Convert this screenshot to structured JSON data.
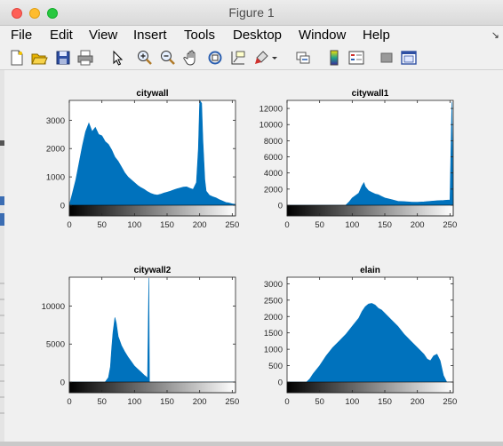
{
  "window": {
    "title": "Figure 1"
  },
  "menu": [
    "File",
    "Edit",
    "View",
    "Insert",
    "Tools",
    "Desktop",
    "Window",
    "Help"
  ],
  "toolbar_icons": [
    "new-figure-icon",
    "open-file-icon",
    "save-icon",
    "print-icon",
    "pointer-icon",
    "zoom-in-icon",
    "zoom-out-icon",
    "pan-hand-icon",
    "rotate-3d-icon",
    "data-cursor-icon",
    "brush-icon",
    "brush-dropdown-icon",
    "link-plot-icon",
    "colorbar-icon",
    "legend-icon",
    "hide-plot-tools-icon",
    "show-plot-tools-icon"
  ],
  "colors": {
    "bar": "#0072bd",
    "figure_bg": "#f0f0f0",
    "axes_bg": "#ffffff"
  },
  "chart_data": [
    {
      "type": "bar",
      "title": "citywall",
      "xlabel": "",
      "ylabel": "",
      "xlim": [
        0,
        255
      ],
      "ylim": [
        0,
        3700
      ],
      "xticks": [
        0,
        50,
        100,
        150,
        200,
        250
      ],
      "yticks": [
        0,
        1000,
        2000,
        3000
      ],
      "x": [
        0,
        5,
        10,
        15,
        20,
        25,
        30,
        35,
        40,
        45,
        50,
        55,
        60,
        65,
        70,
        75,
        80,
        85,
        90,
        95,
        100,
        105,
        110,
        115,
        120,
        125,
        130,
        135,
        140,
        145,
        150,
        155,
        160,
        165,
        170,
        175,
        180,
        185,
        190,
        195,
        198,
        200,
        203,
        205,
        208,
        210,
        215,
        220,
        225,
        230,
        235,
        240,
        245,
        250,
        255
      ],
      "y": [
        0,
        450,
        900,
        1500,
        2100,
        2600,
        2900,
        2600,
        2750,
        2500,
        2450,
        2250,
        2150,
        1950,
        1700,
        1550,
        1350,
        1150,
        1000,
        900,
        800,
        700,
        620,
        560,
        480,
        420,
        380,
        360,
        390,
        430,
        460,
        500,
        540,
        580,
        610,
        640,
        650,
        600,
        560,
        800,
        2000,
        3700,
        3600,
        2300,
        900,
        500,
        350,
        300,
        260,
        200,
        150,
        100,
        80,
        50,
        30
      ]
    },
    {
      "type": "bar",
      "title": "citywall1",
      "xlabel": "",
      "ylabel": "",
      "xlim": [
        0,
        255
      ],
      "ylim": [
        0,
        13000
      ],
      "xticks": [
        0,
        50,
        100,
        150,
        200,
        250
      ],
      "yticks": [
        0,
        2000,
        4000,
        6000,
        8000,
        10000,
        12000
      ],
      "x": [
        0,
        80,
        90,
        95,
        100,
        105,
        110,
        115,
        118,
        120,
        125,
        130,
        135,
        140,
        145,
        150,
        160,
        170,
        180,
        190,
        200,
        210,
        220,
        230,
        240,
        250,
        253,
        255
      ],
      "y": [
        0,
        0,
        0,
        400,
        900,
        1200,
        1500,
        2400,
        2800,
        2300,
        1800,
        1600,
        1400,
        1300,
        1100,
        900,
        700,
        500,
        450,
        400,
        380,
        420,
        500,
        560,
        600,
        650,
        12800,
        400
      ]
    },
    {
      "type": "bar",
      "title": "citywall2",
      "xlabel": "",
      "ylabel": "",
      "xlim": [
        0,
        255
      ],
      "ylim": [
        0,
        13800
      ],
      "xticks": [
        0,
        50,
        100,
        150,
        200,
        250
      ],
      "yticks": [
        0,
        5000,
        10000
      ],
      "x": [
        0,
        55,
        60,
        63,
        65,
        67,
        70,
        72,
        75,
        80,
        85,
        90,
        95,
        100,
        105,
        110,
        115,
        118,
        120,
        122,
        123,
        125,
        255
      ],
      "y": [
        0,
        0,
        600,
        2000,
        4500,
        6500,
        8500,
        7800,
        6000,
        4800,
        4000,
        3300,
        2700,
        2100,
        1700,
        1300,
        900,
        700,
        500,
        13700,
        0,
        0,
        0
      ]
    },
    {
      "type": "bar",
      "title": "elain",
      "xlabel": "",
      "ylabel": "",
      "xlim": [
        0,
        255
      ],
      "ylim": [
        0,
        3200
      ],
      "xticks": [
        0,
        50,
        100,
        150,
        200,
        250
      ],
      "yticks": [
        0,
        500,
        1000,
        1500,
        2000,
        2500,
        3000
      ],
      "x": [
        0,
        30,
        35,
        40,
        50,
        60,
        70,
        80,
        90,
        100,
        110,
        115,
        120,
        125,
        130,
        135,
        140,
        145,
        150,
        155,
        160,
        170,
        180,
        190,
        200,
        210,
        215,
        220,
        225,
        230,
        235,
        240,
        245,
        255
      ],
      "y": [
        0,
        0,
        100,
        250,
        500,
        800,
        1050,
        1250,
        1450,
        1700,
        1950,
        2150,
        2300,
        2380,
        2400,
        2350,
        2250,
        2200,
        2100,
        2000,
        1900,
        1700,
        1450,
        1250,
        1050,
        850,
        700,
        650,
        800,
        850,
        650,
        200,
        0,
        0
      ]
    }
  ]
}
